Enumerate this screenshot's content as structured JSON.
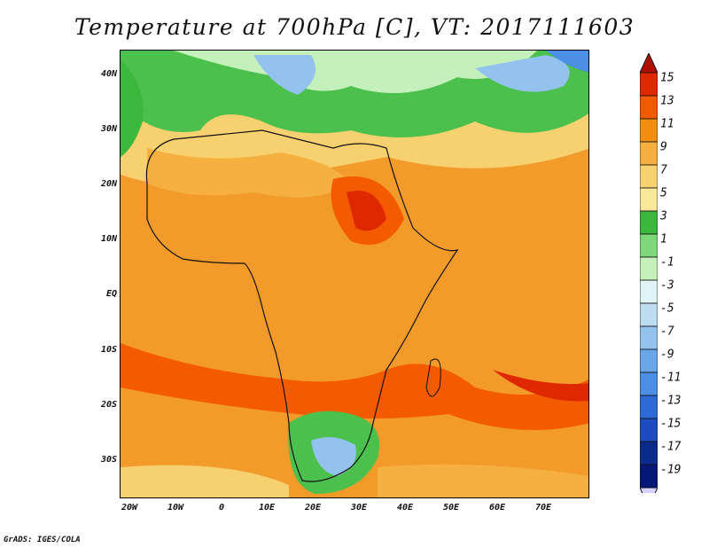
{
  "title": "Temperature at 700hPa [C], VT: 2017111603",
  "credit": "GrADS: IGES/COLA",
  "map": {
    "lat_labels": [
      "40N",
      "30N",
      "20N",
      "10N",
      "EQ",
      "10S",
      "20S",
      "30S"
    ],
    "lon_labels": [
      "20W",
      "10W",
      "0",
      "10E",
      "20E",
      "30E",
      "40E",
      "50E",
      "60E",
      "70E"
    ]
  },
  "colorbar": {
    "labels": [
      "15",
      "13",
      "11",
      "9",
      "7",
      "5",
      "3",
      "1",
      "-1",
      "-3",
      "-5",
      "-7",
      "-9",
      "-11",
      "-13",
      "-15",
      "-17",
      "-19"
    ],
    "colors": [
      "#b01000",
      "#e02800",
      "#f45a00",
      "#f38f10",
      "#f5b040",
      "#f7d070",
      "#f8e89a",
      "#3cb83c",
      "#7ed87a",
      "#c4f0bc",
      "#dff4f4",
      "#bcdcf2",
      "#94c2ee",
      "#6aa6ea",
      "#4d8fe6",
      "#2d6ad8",
      "#1c4cc0",
      "#0a2a8c",
      "#051878",
      "#d8d0ff"
    ]
  }
}
